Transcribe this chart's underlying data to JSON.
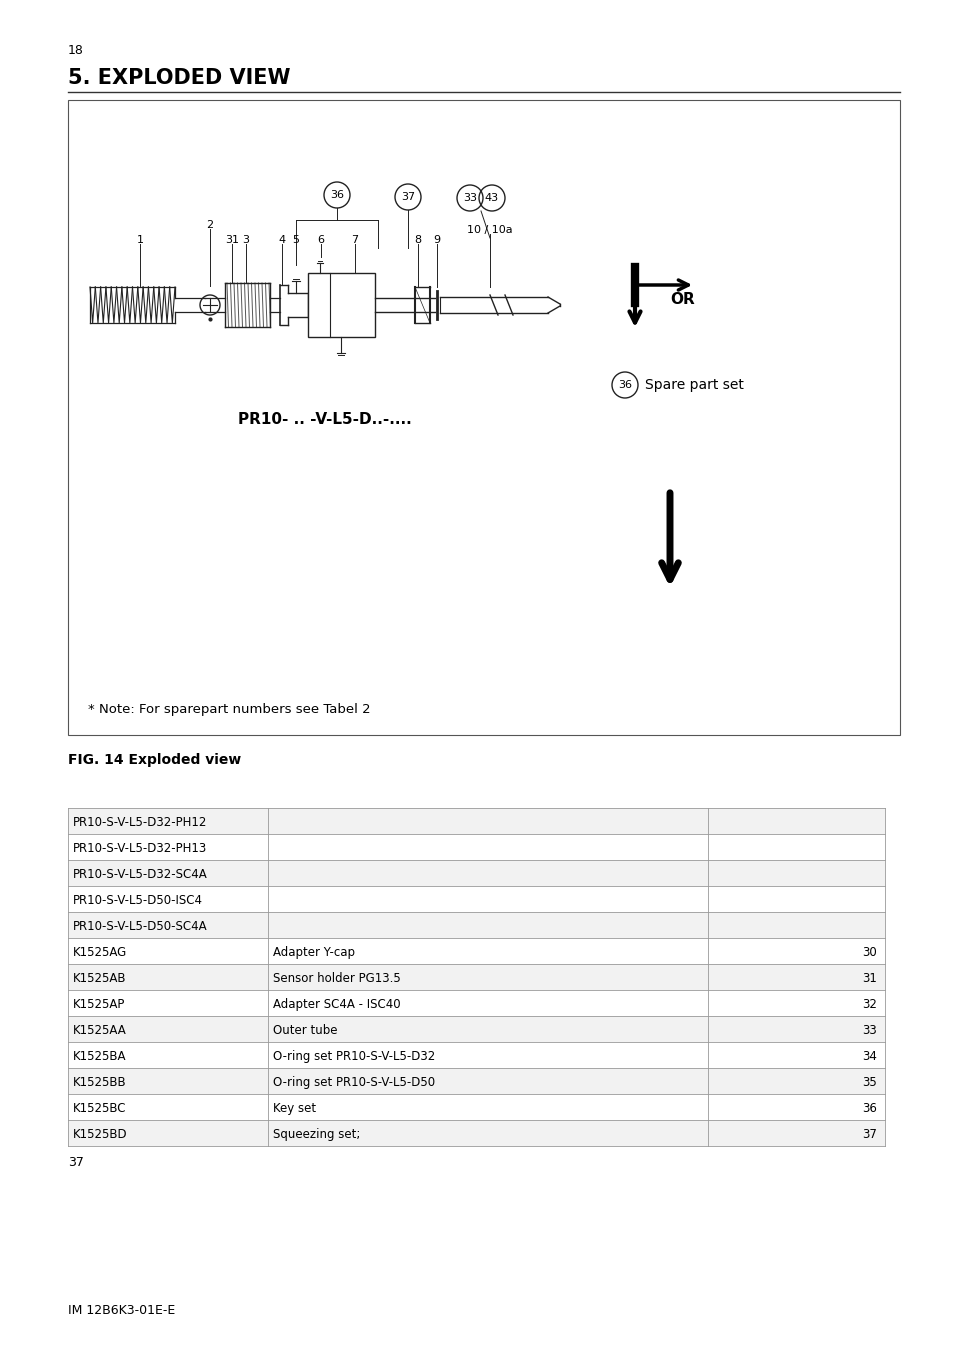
{
  "page_number": "18",
  "section_title": "5. EXPLODED VIEW",
  "fig_caption": "FIG. 14 Exploded view",
  "diagram_label": "PR10- .. -V-L5-D..-....",
  "note_text": "* Note: For sparepart numbers see Tabel 2",
  "footer_text": "IM 12B6K3-01E-E",
  "page_num_bottom": "37",
  "table_rows": [
    [
      "PR10-S-V-L5-D32-PH12",
      "",
      ""
    ],
    [
      "PR10-S-V-L5-D32-PH13",
      "",
      ""
    ],
    [
      "PR10-S-V-L5-D32-SC4A",
      "",
      ""
    ],
    [
      "PR10-S-V-L5-D50-ISC4",
      "",
      ""
    ],
    [
      "PR10-S-V-L5-D50-SC4A",
      "",
      ""
    ],
    [
      "K1525AG",
      "Adapter Y-cap",
      "30"
    ],
    [
      "K1525AB",
      "Sensor holder PG13.5",
      "31"
    ],
    [
      "K1525AP",
      "Adapter SC4A - ISC40",
      "32"
    ],
    [
      "K1525AA",
      "Outer tube",
      "33"
    ],
    [
      "K1525BA",
      "O-ring set PR10-S-V-L5-D32",
      "34"
    ],
    [
      "K1525BB",
      "O-ring set PR10-S-V-L5-D50",
      "35"
    ],
    [
      "K1525BC",
      "Key set",
      "36"
    ],
    [
      "K1525BD",
      "Squeezing set;",
      "37"
    ]
  ],
  "bg_color": "#ffffff",
  "text_color": "#000000",
  "line_color": "#000000"
}
